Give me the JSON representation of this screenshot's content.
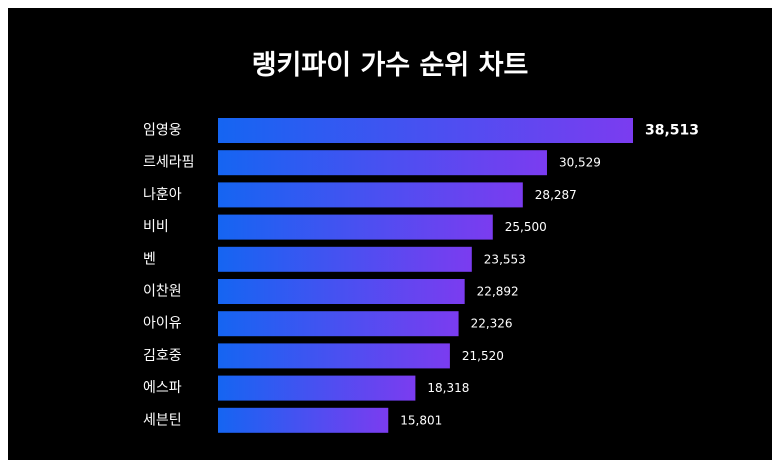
{
  "chart_data": {
    "type": "bar",
    "orientation": "horizontal",
    "title": "랭키파이 가수 순위 차트",
    "categories": [
      "임영웅",
      "르세라핌",
      "나훈아",
      "비비",
      "벤",
      "이찬원",
      "아이유",
      "김호중",
      "에스파",
      "세븐틴"
    ],
    "values": [
      38513,
      30529,
      28287,
      25500,
      23553,
      22892,
      22326,
      21520,
      18318,
      15801
    ],
    "value_labels": [
      "38,513",
      "30,529",
      "28,287",
      "25,500",
      "23,553",
      "22,892",
      "22,326",
      "21,520",
      "18,318",
      "15,801"
    ],
    "xlim": [
      0,
      38513
    ],
    "grid": false,
    "legend": "none",
    "colors": {
      "background": "#000000",
      "bar_gradient_start": "#1565f2",
      "bar_gradient_end": "#7b3cf0",
      "text": "#ffffff"
    }
  }
}
